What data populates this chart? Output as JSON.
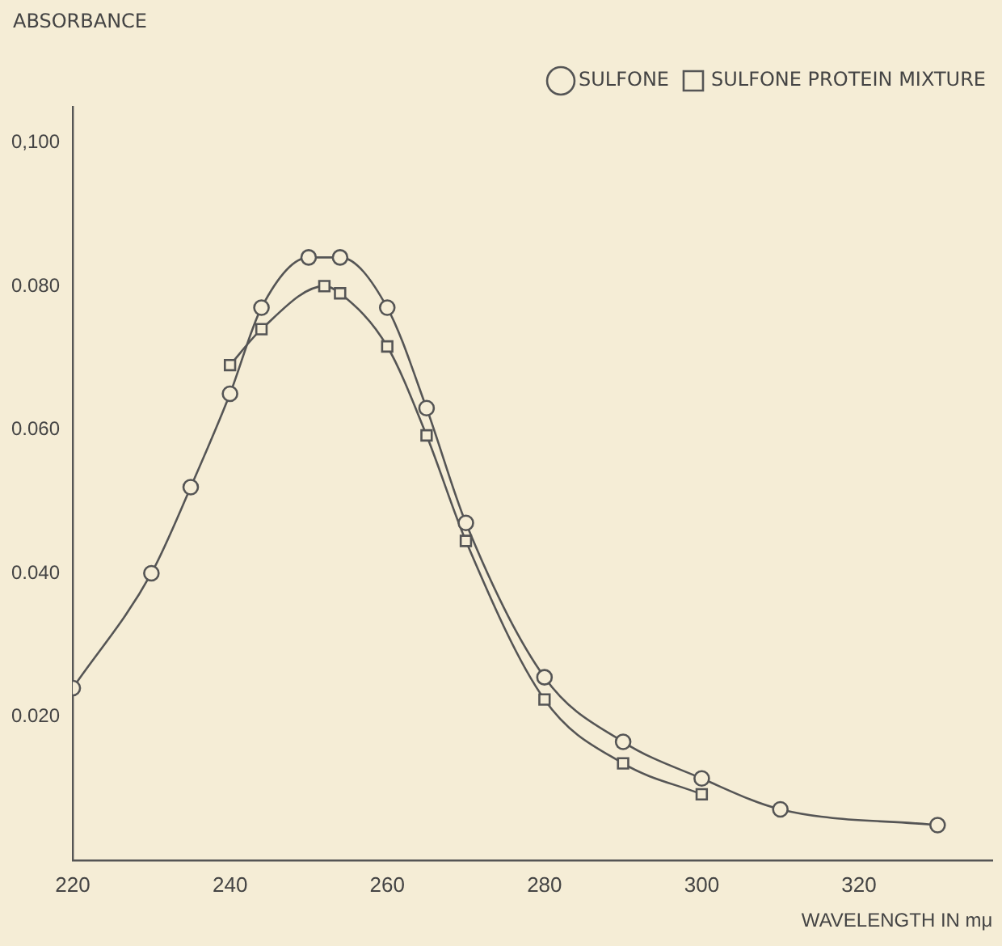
{
  "chart_data": {
    "type": "line",
    "xlabel": "WAVELENGTH IN mμ",
    "ylabel": "ABSORBANCE",
    "xlim": [
      220,
      337
    ],
    "xticks": [
      220,
      240,
      260,
      280,
      300,
      320
    ],
    "ylim": [
      0,
      0.105
    ],
    "yticks": [
      {
        "value": 0.1,
        "label": "0,100"
      },
      {
        "value": 0.08,
        "label": "0.080"
      },
      {
        "value": 0.06,
        "label": "0.060"
      },
      {
        "value": 0.04,
        "label": "0.040"
      },
      {
        "value": 0.02,
        "label": "0.020"
      }
    ],
    "grid": false,
    "legend": "top right",
    "series": [
      {
        "name": "SULFONE",
        "color": "#555555",
        "marker": "circle",
        "x": [
          220,
          230,
          235,
          240,
          244,
          250,
          254,
          260,
          265,
          270,
          280,
          290,
          300,
          310,
          330
        ],
        "values": [
          0.024,
          0.04,
          0.052,
          0.065,
          0.077,
          0.084,
          0.084,
          0.077,
          0.063,
          0.047,
          0.0255,
          0.0165,
          0.0114,
          0.0071,
          0.0049
        ]
      },
      {
        "name": "SULFONE PROTEIN MIXTURE",
        "color": "#555555",
        "marker": "square",
        "x": [
          240,
          244,
          252,
          254,
          260,
          265,
          270,
          280,
          290,
          300
        ],
        "values": [
          0.069,
          0.074,
          0.08,
          0.079,
          0.0716,
          0.0592,
          0.0445,
          0.0224,
          0.0135,
          0.0092
        ]
      }
    ]
  }
}
